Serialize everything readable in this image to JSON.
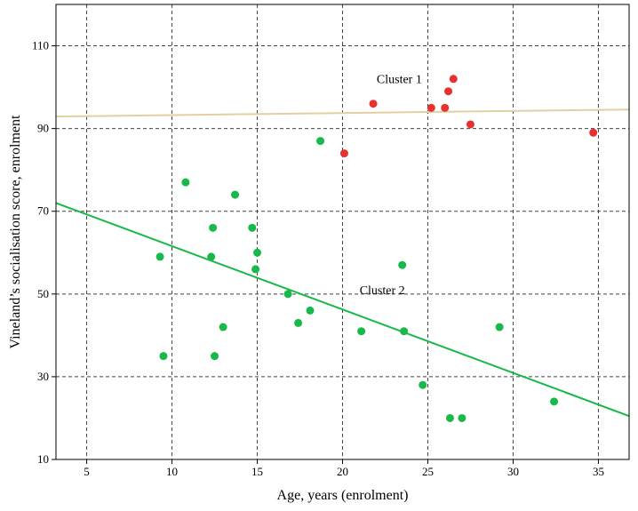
{
  "chart_data": {
    "type": "scatter",
    "xlabel": "Age, years (enrolment)",
    "ylabel": "Vineland’s socialisation score, enrolment",
    "xlim": [
      3.2,
      36.8
    ],
    "ylim": [
      10,
      120
    ],
    "xticks": [
      5,
      10,
      15,
      20,
      25,
      30,
      35
    ],
    "yticks": [
      10,
      30,
      50,
      70,
      90,
      110
    ],
    "grid": true,
    "series": [
      {
        "name": "Cluster 1",
        "color": "#e8312f",
        "points": [
          {
            "x": 20.1,
            "y": 84
          },
          {
            "x": 21.8,
            "y": 96
          },
          {
            "x": 25.2,
            "y": 95
          },
          {
            "x": 26.0,
            "y": 95
          },
          {
            "x": 26.2,
            "y": 99
          },
          {
            "x": 26.5,
            "y": 102
          },
          {
            "x": 27.5,
            "y": 91
          },
          {
            "x": 34.7,
            "y": 89
          }
        ]
      },
      {
        "name": "Cluster 2",
        "color": "#19b84a",
        "points": [
          {
            "x": 9.3,
            "y": 59
          },
          {
            "x": 9.5,
            "y": 35
          },
          {
            "x": 10.8,
            "y": 77
          },
          {
            "x": 12.3,
            "y": 59
          },
          {
            "x": 12.4,
            "y": 66
          },
          {
            "x": 12.5,
            "y": 35
          },
          {
            "x": 13.0,
            "y": 42
          },
          {
            "x": 13.7,
            "y": 74
          },
          {
            "x": 14.7,
            "y": 66
          },
          {
            "x": 14.9,
            "y": 56
          },
          {
            "x": 15.0,
            "y": 60
          },
          {
            "x": 16.8,
            "y": 50
          },
          {
            "x": 17.4,
            "y": 43
          },
          {
            "x": 18.1,
            "y": 46
          },
          {
            "x": 18.7,
            "y": 87
          },
          {
            "x": 21.1,
            "y": 41
          },
          {
            "x": 23.5,
            "y": 57
          },
          {
            "x": 23.6,
            "y": 41
          },
          {
            "x": 24.7,
            "y": 28
          },
          {
            "x": 26.3,
            "y": 20
          },
          {
            "x": 27.0,
            "y": 20
          },
          {
            "x": 29.2,
            "y": 42
          },
          {
            "x": 32.4,
            "y": 24
          }
        ]
      }
    ],
    "fit_lines": [
      {
        "series": "Cluster 1",
        "color": "#e3cfa2",
        "x": [
          3.2,
          36.8
        ],
        "y": [
          92.9,
          94.6
        ]
      },
      {
        "series": "Cluster 2",
        "color": "#19b84a",
        "x": [
          3.2,
          36.8
        ],
        "y": [
          72.0,
          20.5
        ]
      }
    ],
    "annotations": [
      {
        "text": "Cluster 1",
        "x": 22.0,
        "y": 101
      },
      {
        "text": "Cluster 2",
        "x": 21.0,
        "y": 50
      }
    ]
  }
}
